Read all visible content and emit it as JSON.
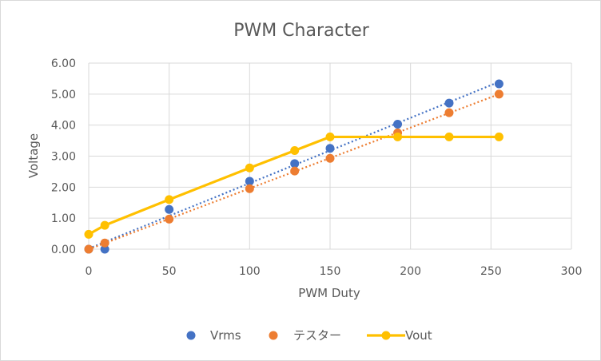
{
  "chart_data": {
    "type": "scatter",
    "title": "PWM Character",
    "xlabel": "PWM Duty",
    "ylabel": "Voltage",
    "xlim": [
      0,
      300
    ],
    "ylim": [
      0,
      6
    ],
    "x_ticks": [
      "0",
      "50",
      "100",
      "150",
      "200",
      "250",
      "300"
    ],
    "y_ticks": [
      "0.00",
      "1.00",
      "2.00",
      "3.00",
      "4.00",
      "5.00",
      "6.00"
    ],
    "grid": true,
    "legend_position": "bottom",
    "series": [
      {
        "name": "Vrms",
        "style": "markers",
        "trendline": "linear",
        "color": "#4472C4",
        "points": [
          [
            0,
            0.0
          ],
          [
            10,
            0.0
          ],
          [
            50,
            1.28
          ],
          [
            100,
            2.19
          ],
          [
            128,
            2.76
          ],
          [
            150,
            3.25
          ],
          [
            192,
            4.03
          ],
          [
            224,
            4.71
          ],
          [
            255,
            5.33
          ]
        ]
      },
      {
        "name": "テスター",
        "style": "markers",
        "trendline": "linear",
        "color": "#ED7D31",
        "points": [
          [
            0,
            0.0
          ],
          [
            10,
            0.2
          ],
          [
            50,
            0.97
          ],
          [
            100,
            1.95
          ],
          [
            128,
            2.52
          ],
          [
            150,
            2.93
          ],
          [
            192,
            3.75
          ],
          [
            224,
            4.4
          ],
          [
            255,
            5.0
          ]
        ]
      },
      {
        "name": "Vout",
        "style": "line-markers",
        "color": "#FFC000",
        "points": [
          [
            0,
            0.48
          ],
          [
            10,
            0.77
          ],
          [
            50,
            1.6
          ],
          [
            100,
            2.62
          ],
          [
            128,
            3.18
          ],
          [
            150,
            3.62
          ],
          [
            192,
            3.62
          ],
          [
            224,
            3.62
          ],
          [
            255,
            3.62
          ]
        ]
      }
    ]
  }
}
